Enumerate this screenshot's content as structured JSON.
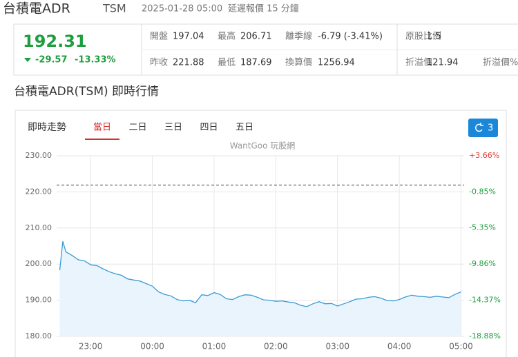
{
  "header": {
    "title": "台積電ADR",
    "symbol": "TSM",
    "datetime": "2025-01-28 05:00",
    "delay_note": "延遲報價 15 分鐘"
  },
  "quote": {
    "price": "192.31",
    "change": "-29.57",
    "change_pct": "-13.33%",
    "stats": [
      [
        {
          "label": "開盤",
          "value": "197.04"
        },
        {
          "label": "最高",
          "value": "206.71"
        },
        {
          "label": "離季線",
          "value": "-6.79 (-3.41%)"
        },
        {
          "label": "原股比例",
          "value": "1:5"
        }
      ],
      [
        {
          "label": "昨收",
          "value": "221.88"
        },
        {
          "label": "最低",
          "value": "187.69"
        },
        {
          "label": "換算價",
          "value": "1256.94"
        },
        {
          "label": "折溢價",
          "value": "121.94"
        },
        {
          "label": "折溢價%"
        }
      ]
    ]
  },
  "section_title": "台積電ADR(TSM) 即時行情",
  "chart_panel": {
    "heading": "即時走勢",
    "tabs": [
      "當日",
      "二日",
      "三日",
      "四日",
      "五日"
    ],
    "active_tab": 0,
    "refresh_label": "3",
    "watermark": "WantGoo 玩股網"
  },
  "chart_data": {
    "type": "line",
    "x": [
      22.5,
      22.55,
      22.6,
      22.7,
      22.8,
      22.9,
      23.0,
      23.1,
      23.2,
      23.3,
      23.4,
      23.5,
      23.6,
      23.7,
      23.8,
      23.9,
      24.0,
      24.1,
      24.2,
      24.3,
      24.4,
      24.5,
      24.6,
      24.7,
      24.8,
      24.9,
      25.0,
      25.1,
      25.2,
      25.3,
      25.4,
      25.5,
      25.6,
      25.7,
      25.8,
      25.9,
      26.0,
      26.1,
      26.2,
      26.3,
      26.4,
      26.5,
      26.6,
      26.7,
      26.8,
      26.9,
      27.0,
      27.1,
      27.2,
      27.3,
      27.4,
      27.5,
      27.6,
      27.7,
      27.8,
      27.9,
      28.0,
      28.1,
      28.2,
      28.3,
      28.4,
      28.5,
      28.6,
      28.7,
      28.8,
      28.9,
      29.0
    ],
    "series": [
      {
        "color": "#3a9bd5",
        "values": [
          198.3,
          206.3,
          203.4,
          202.4,
          201.2,
          200.9,
          199.8,
          199.6,
          198.7,
          197.9,
          197.3,
          196.9,
          195.9,
          195.6,
          195.3,
          194.6,
          193.9,
          192.3,
          191.6,
          191.2,
          190.2,
          189.8,
          190.0,
          189.3,
          191.5,
          191.3,
          192.1,
          191.6,
          190.4,
          190.2,
          191.0,
          191.5,
          191.4,
          190.8,
          190.1,
          190.0,
          189.7,
          189.8,
          189.5,
          189.3,
          188.6,
          188.2,
          189.0,
          189.6,
          189.0,
          189.1,
          188.4,
          189.0,
          189.6,
          190.3,
          190.4,
          190.8,
          191.0,
          190.6,
          189.9,
          189.8,
          190.2,
          190.9,
          191.4,
          191.1,
          191.0,
          190.8,
          191.1,
          190.9,
          190.7,
          191.6,
          192.31
        ]
      }
    ],
    "area_color": "#e9f4fc",
    "prev_close": 221.88,
    "xlim": [
      22.45,
      29.05
    ],
    "xticks": [
      {
        "value": 23,
        "label": "23:00"
      },
      {
        "value": 24,
        "label": "00:00"
      },
      {
        "value": 25,
        "label": "01:00"
      },
      {
        "value": 26,
        "label": "02:00"
      },
      {
        "value": 27,
        "label": "03:00"
      },
      {
        "value": 28,
        "label": "04:00"
      },
      {
        "value": 29,
        "label": "05:00"
      }
    ],
    "ylim": [
      180,
      230
    ],
    "yticks": [
      {
        "value": 230,
        "label": "230.00"
      },
      {
        "value": 220,
        "label": "220.00"
      },
      {
        "value": 210,
        "label": "210.00"
      },
      {
        "value": 200,
        "label": "200.00"
      },
      {
        "value": 190,
        "label": "190.00"
      },
      {
        "value": 180,
        "label": "180.00"
      }
    ],
    "y2lim": [
      -18.88,
      3.66
    ],
    "y2ticks": [
      {
        "value": 3.66,
        "label": "+3.66%"
      },
      {
        "value": -0.85,
        "label": "-0.85%"
      },
      {
        "value": -5.35,
        "label": "-5.35%"
      },
      {
        "value": -9.86,
        "label": "-9.86%"
      },
      {
        "value": -14.37,
        "label": "-14.37%"
      },
      {
        "value": -18.88,
        "label": "-18.88%"
      }
    ],
    "y2_up_color": "#e53935",
    "y2_down_color": "#1e9e3e",
    "grid": true
  }
}
